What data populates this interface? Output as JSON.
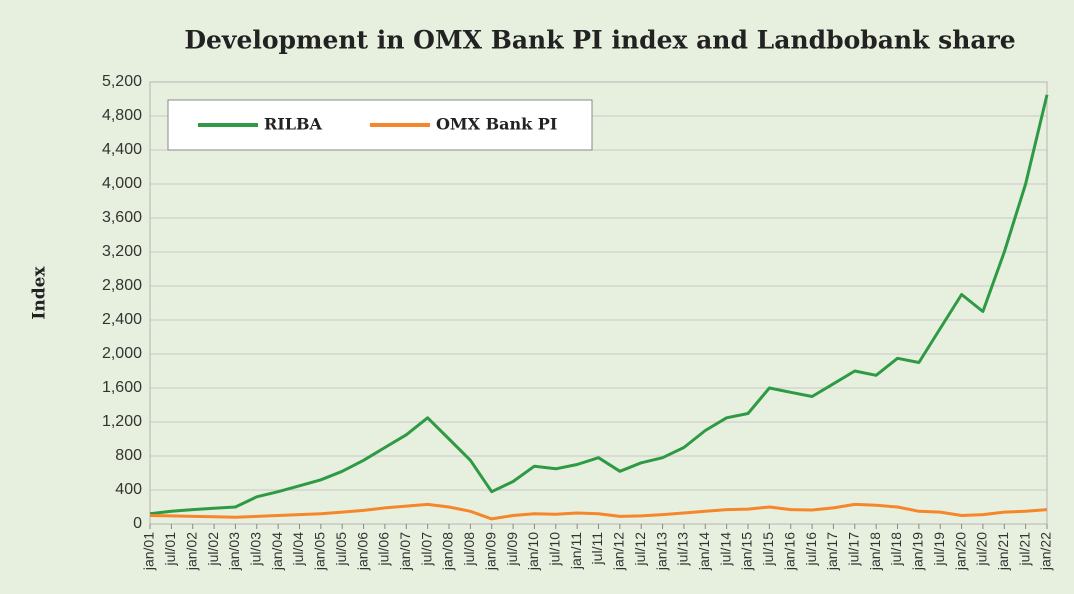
{
  "chart_data": {
    "type": "line",
    "title": "Development in OMX Bank PI index and Landbobank share",
    "ylabel": "Index",
    "categories": [
      "jan/01",
      "jul/01",
      "jan/02",
      "jul/02",
      "jan/03",
      "jul/03",
      "jan/04",
      "jul/04",
      "jan/05",
      "jul/05",
      "jan/06",
      "jul/06",
      "jan/07",
      "jul/07",
      "jan/08",
      "jul/08",
      "jan/09",
      "jul/09",
      "jan/10",
      "jul/10",
      "jan/11",
      "jul/11",
      "jan/12",
      "jul/12",
      "jan/13",
      "jul/13",
      "jan/14",
      "jul/14",
      "jan/15",
      "jul/15",
      "jan/16",
      "jul/16",
      "jan/17",
      "jul/17",
      "jan/18",
      "jul/18",
      "jan/19",
      "jul/19",
      "jan/20",
      "jul/20",
      "jan/21",
      "jul/21",
      "jan/22"
    ],
    "series": [
      {
        "name": "RILBA",
        "color": "#2e9a44",
        "values": [
          120,
          150,
          170,
          185,
          200,
          320,
          380,
          450,
          520,
          620,
          750,
          900,
          1050,
          1250,
          1000,
          750,
          380,
          500,
          680,
          650,
          700,
          780,
          620,
          720,
          780,
          900,
          1100,
          1250,
          1300,
          1600,
          1550,
          1500,
          1650,
          1800,
          1750,
          1950,
          1900,
          2300,
          2700,
          2500,
          3200,
          4000,
          5050
        ]
      },
      {
        "name": "OMX Bank PI",
        "color": "#f5862a",
        "values": [
          100,
          95,
          90,
          85,
          80,
          90,
          100,
          110,
          120,
          140,
          160,
          190,
          210,
          230,
          200,
          150,
          60,
          100,
          120,
          115,
          130,
          120,
          90,
          95,
          110,
          130,
          150,
          170,
          175,
          200,
          170,
          165,
          190,
          230,
          220,
          200,
          150,
          140,
          100,
          110,
          140,
          150,
          170
        ]
      }
    ],
    "ylim": [
      0,
      5200
    ],
    "yticks": [
      0,
      400,
      800,
      {
        "value": 1200,
        "label": "1,200"
      },
      {
        "value": 1600,
        "label": "1,600"
      },
      {
        "value": 2000,
        "label": "2,000"
      },
      {
        "value": 2400,
        "label": "2,400"
      },
      {
        "value": 2800,
        "label": "2,800"
      },
      {
        "value": 3200,
        "label": "3,200"
      },
      {
        "value": 3600,
        "label": "3,600"
      },
      {
        "value": 4000,
        "label": "4,000"
      },
      {
        "value": 4400,
        "label": "4,400"
      },
      {
        "value": 4800,
        "label": "4,800"
      },
      {
        "value": 5200,
        "label": "5,200"
      }
    ],
    "grid": true,
    "legend": "upper left"
  }
}
